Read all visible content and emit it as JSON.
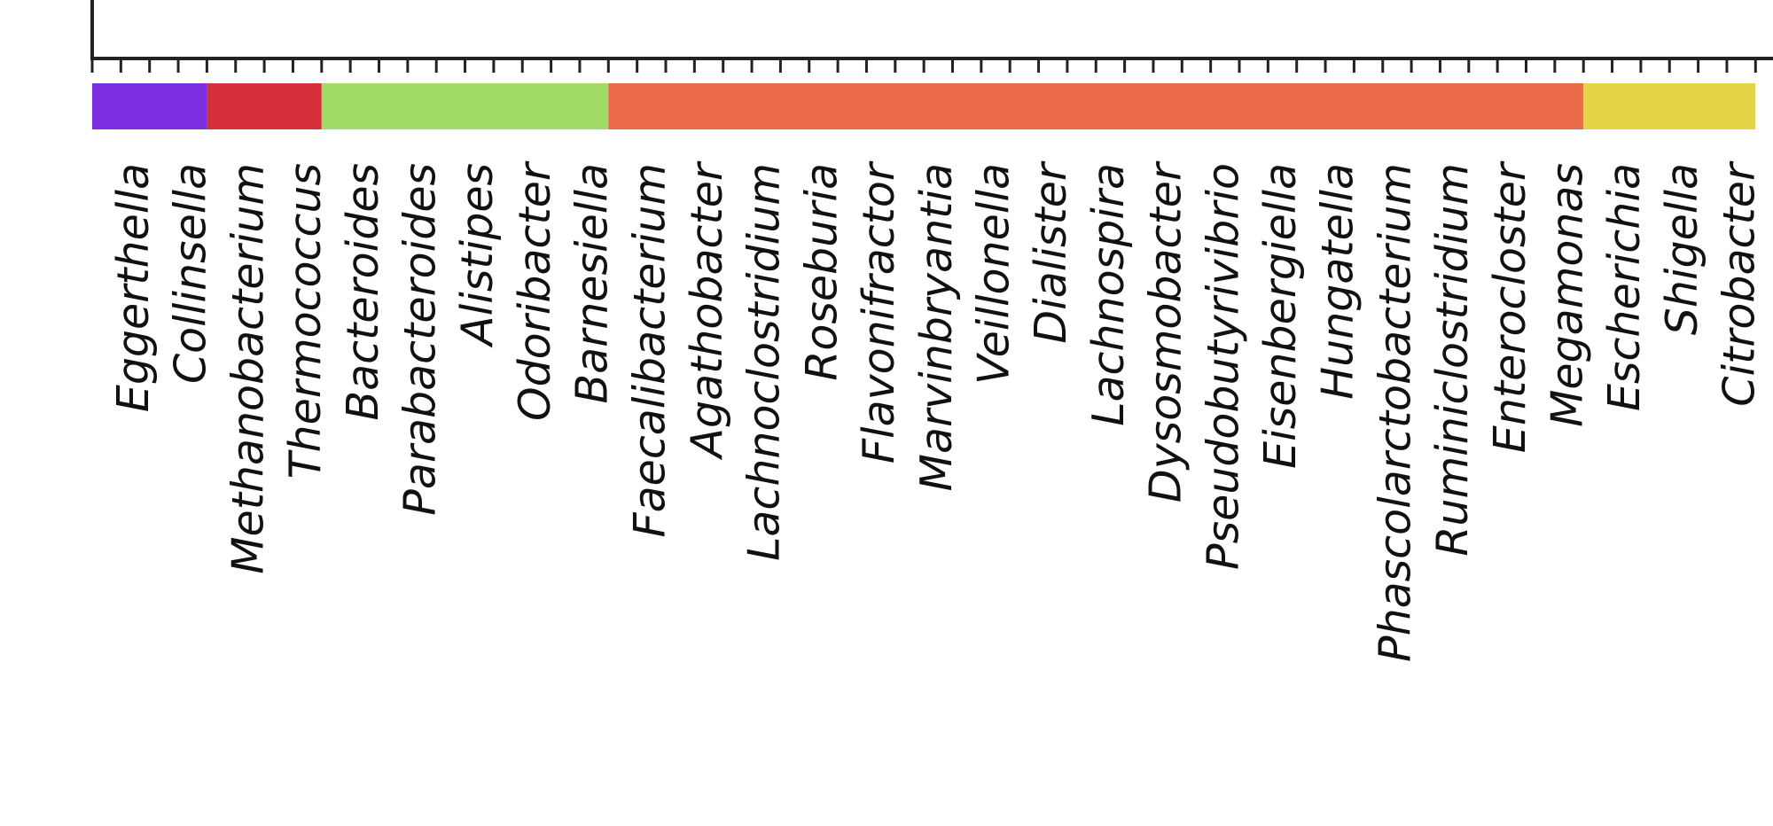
{
  "chart_data": {
    "type": "heatmap",
    "title": "",
    "xlabel": "",
    "ylabel": "",
    "grid": false,
    "legend": "none",
    "x_tick_labels": [
      "Eggerthella",
      "Collinsella",
      "Methanobacterium",
      "Thermococcus",
      "Bacteroides",
      "Parabacteroides",
      "Alistipes",
      "Odoribacter",
      "Barnesiella",
      "Faecalibacterium",
      "Agathobacter",
      "Lachnoclostridium",
      "Roseburia",
      "Flavonifractor",
      "Marvinbryantia",
      "Veillonella",
      "Dialister",
      "Lachnospira",
      "Dysosmobacter",
      "Pseudobutyrivibrio",
      "Eisenbergiella",
      "Hungatella",
      "Phascolarctobacterium",
      "Ruminiclostridium",
      "Enterocloster",
      "Megamonas",
      "Escherichia",
      "Shigella",
      "Citrobacter"
    ],
    "group_colors": [
      {
        "from": 0,
        "to": 1,
        "color": "#7b2fe0"
      },
      {
        "from": 2,
        "to": 3,
        "color": "#d62f3c"
      },
      {
        "from": 4,
        "to": 8,
        "color": "#a0dc64"
      },
      {
        "from": 9,
        "to": 25,
        "color": "#eb6a48"
      },
      {
        "from": 26,
        "to": 28,
        "color": "#e6d447"
      }
    ],
    "axis_color": "#222222"
  }
}
